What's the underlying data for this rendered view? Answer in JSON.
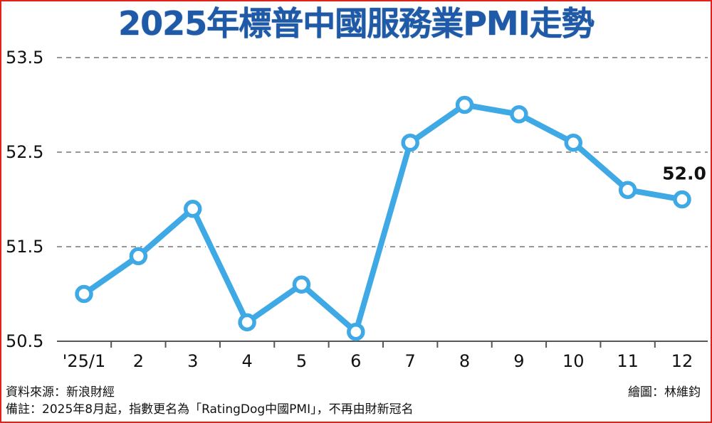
{
  "title": "2025年標普中國服務業PMI走勢",
  "source_text": "資料來源：新浪財經",
  "credit_text": "繪圖：林維鈞",
  "note_text": "備註：2025年8月起，指數更名為「RatingDog中國PMI」，不再由財新冠名",
  "chart_data": {
    "type": "line",
    "title": "2025年標普中國服務業PMI走勢",
    "xlabel": "",
    "ylabel": "",
    "categories": [
      "'25/1",
      "2",
      "3",
      "4",
      "5",
      "6",
      "7",
      "8",
      "9",
      "10",
      "11",
      "12"
    ],
    "series": [
      {
        "values": [
          51.0,
          51.4,
          51.9,
          50.7,
          51.1,
          50.6,
          52.6,
          53.0,
          52.9,
          52.6,
          52.1,
          52.0
        ]
      }
    ],
    "ylim": [
      50.5,
      53.5
    ],
    "yticks": [
      "50.5",
      "51.5",
      "52.5",
      "53.5"
    ],
    "grid": true,
    "last_point_label": "52.0",
    "colors": {
      "line": "#3fa9e6",
      "title": "#1e5aa8",
      "border": "#e2231a",
      "grid": "#777777"
    }
  }
}
